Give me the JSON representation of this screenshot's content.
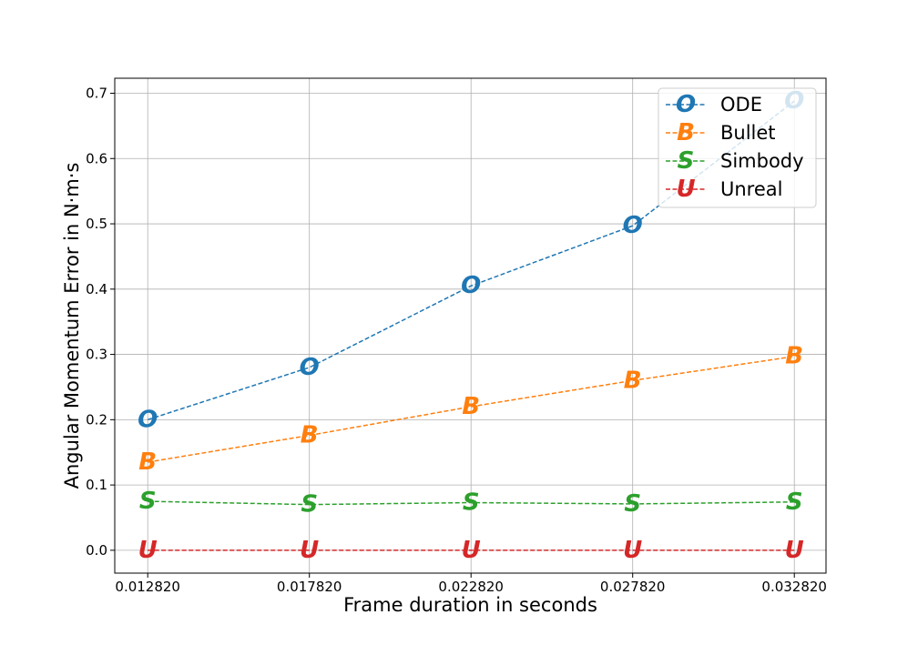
{
  "chart_data": {
    "type": "line",
    "xlabel": "Frame duration in seconds",
    "ylabel": "Angular Momentum Error in N·m·s",
    "x": [
      0.01282,
      0.01782,
      0.02282,
      0.02782,
      0.03282
    ],
    "x_tick_labels": [
      "0.012820",
      "0.017820",
      "0.022820",
      "0.027820",
      "0.032820"
    ],
    "y_ticks": [
      0.0,
      0.1,
      0.2,
      0.3,
      0.4,
      0.5,
      0.6,
      0.7
    ],
    "y_tick_labels": [
      "0.0",
      "0.1",
      "0.2",
      "0.3",
      "0.4",
      "0.5",
      "0.6",
      "0.7"
    ],
    "xlim": [
      0.0118,
      0.0338
    ],
    "ylim": [
      -0.035,
      0.723
    ],
    "grid": true,
    "legend_position": "top-right",
    "series": [
      {
        "name": "ODE",
        "marker": "O",
        "color": "#1f77b4",
        "values": [
          0.2,
          0.28,
          0.405,
          0.497,
          0.688
        ]
      },
      {
        "name": "Bullet",
        "marker": "B",
        "color": "#ff7f0e",
        "values": [
          0.135,
          0.176,
          0.22,
          0.26,
          0.297
        ]
      },
      {
        "name": "Simbody",
        "marker": "S",
        "color": "#2ca02c",
        "values": [
          0.075,
          0.07,
          0.073,
          0.071,
          0.074
        ]
      },
      {
        "name": "Unreal",
        "marker": "U",
        "color": "#d62728",
        "values": [
          0.0,
          0.0,
          0.0,
          0.0,
          0.0
        ]
      }
    ]
  }
}
